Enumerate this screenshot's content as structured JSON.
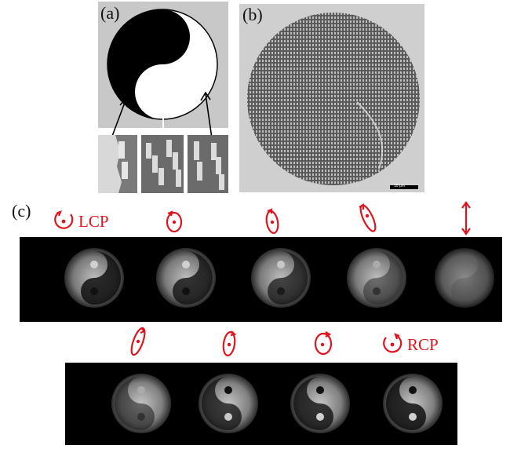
{
  "panels": {
    "a": {
      "label": "(a)"
    },
    "b": {
      "label": "(b)",
      "scalebar": "10 μm"
    },
    "c": {
      "label": "(c)"
    }
  },
  "polarization": {
    "row1": [
      {
        "icon": "lcp-circle-icon",
        "text": "LCP"
      },
      {
        "icon": "ellipse-slight-left-icon"
      },
      {
        "icon": "ellipse-tilted-left-icon"
      },
      {
        "icon": "ellipse-narrow-tilted-icon"
      },
      {
        "icon": "linear-vertical-arrow-icon"
      }
    ],
    "row2": [
      {
        "icon": "ellipse-narrow-right-icon"
      },
      {
        "icon": "ellipse-tilted-right-icon"
      },
      {
        "icon": "ellipse-slight-right-icon"
      },
      {
        "icon": "rcp-circle-icon",
        "text": "RCP"
      }
    ]
  },
  "colors": {
    "annotation_red": "#e0141e",
    "panel_gray": "#c8c8c8",
    "background": "#ffffff"
  }
}
